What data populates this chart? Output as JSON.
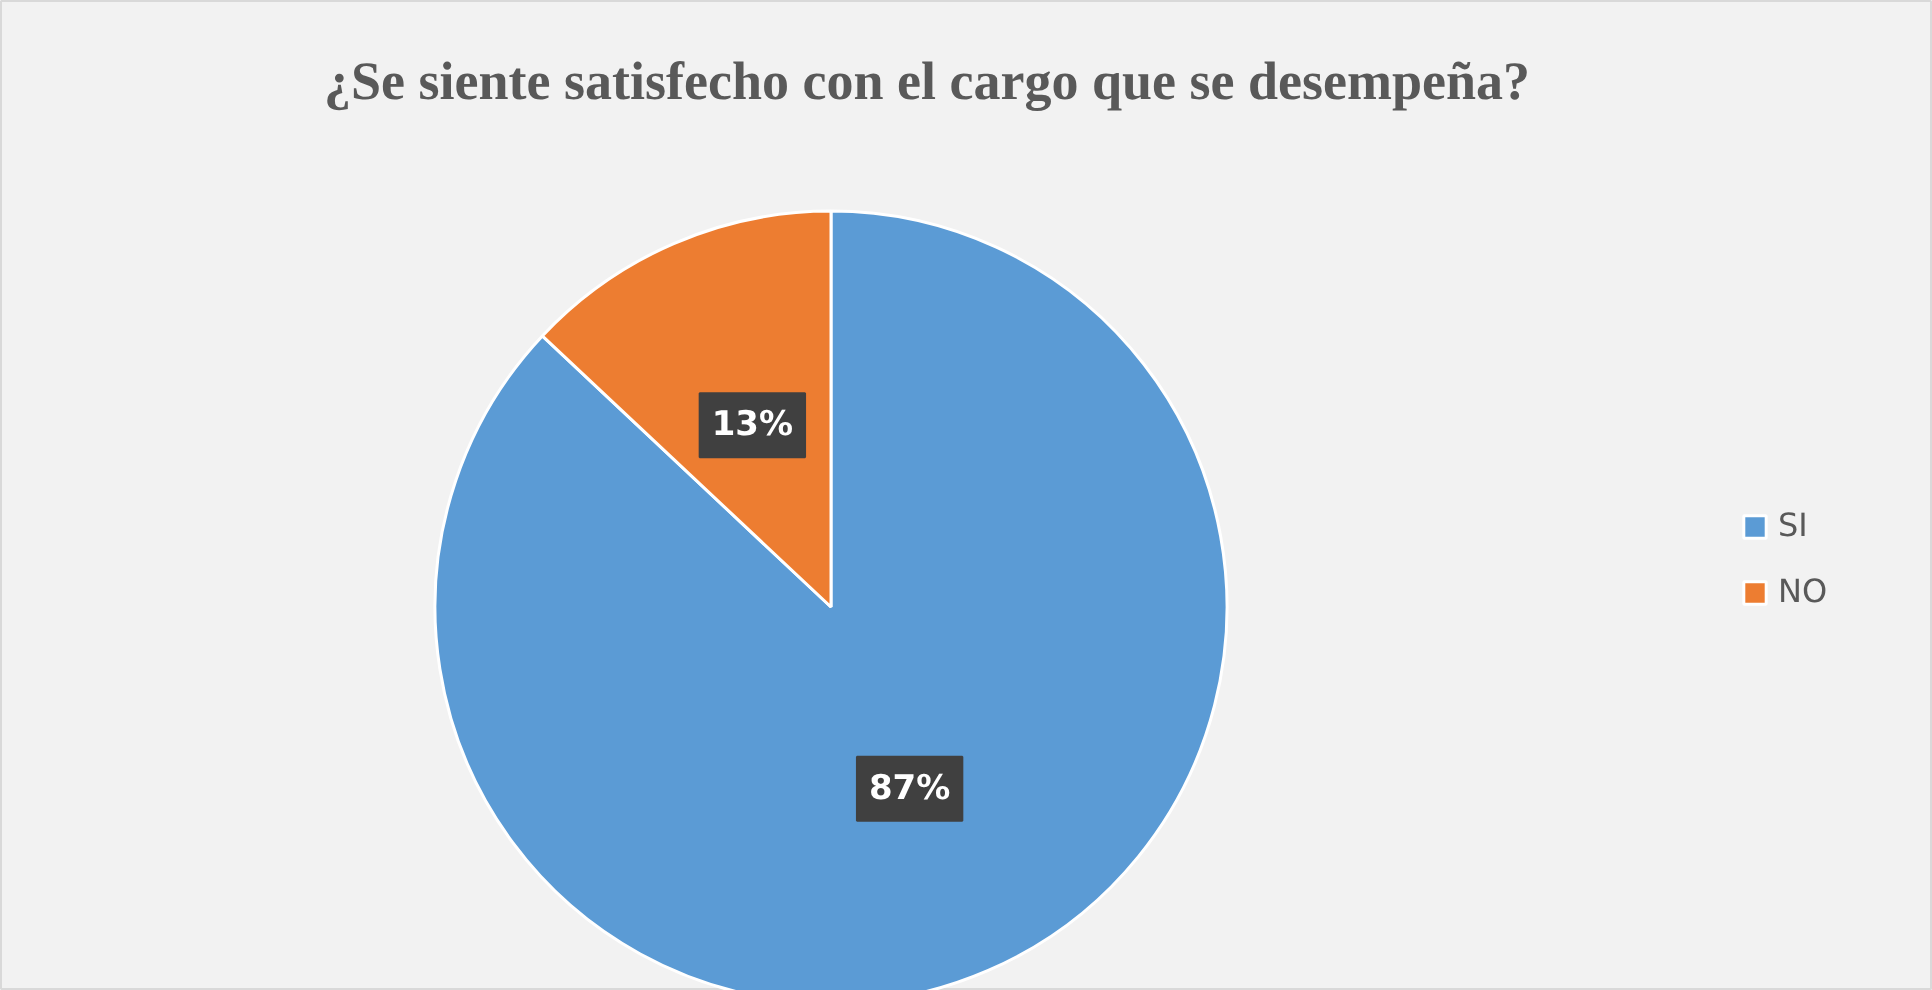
{
  "chart_data": {
    "type": "pie",
    "title": "¿Se siente satisfecho con el cargo que se desempeña?",
    "categories": [
      "SI",
      "NO"
    ],
    "values": [
      87,
      13
    ],
    "colors": [
      "#5b9bd5",
      "#ed7d31"
    ],
    "value_labels": [
      "87%",
      "13%"
    ],
    "legend": "right"
  }
}
